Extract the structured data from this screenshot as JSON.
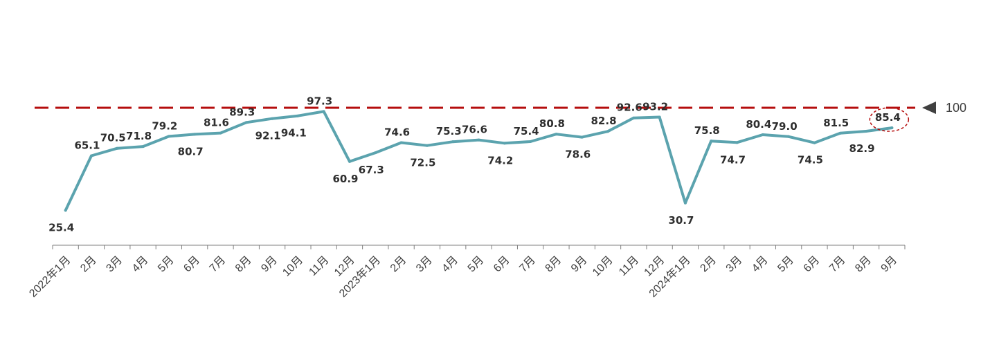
{
  "chart_data": {
    "type": "line",
    "categories": [
      "2022年1月",
      "2月",
      "3月",
      "4月",
      "5月",
      "6月",
      "7月",
      "8月",
      "9月",
      "10月",
      "11月",
      "12月",
      "2023年1月",
      "2月",
      "3月",
      "4月",
      "5月",
      "6月",
      "7月",
      "8月",
      "9月",
      "10月",
      "11月",
      "12月",
      "2024年1月",
      "2月",
      "3月",
      "4月",
      "5月",
      "6月",
      "7月",
      "8月",
      "9月"
    ],
    "values": [
      25.4,
      65.1,
      70.5,
      71.8,
      79.2,
      80.7,
      81.6,
      89.3,
      92.1,
      94.1,
      97.3,
      60.9,
      67.3,
      74.6,
      72.5,
      75.3,
      76.6,
      74.2,
      75.4,
      80.8,
      78.6,
      82.8,
      92.6,
      93.2,
      30.7,
      75.8,
      74.7,
      80.4,
      79.0,
      74.5,
      81.5,
      82.9,
      85.4
    ],
    "labels": [
      "25.4",
      "65.1",
      "70.5",
      "71.8",
      "79.2",
      "80.7",
      "81.6",
      "89.3",
      "92.1",
      "94.1",
      "97.3",
      "60.9",
      "67.3",
      "74.6",
      "72.5",
      "75.3",
      "76.6",
      "74.2",
      "75.4",
      "80.8",
      "78.6",
      "82.8",
      "92.6",
      "93.2",
      "30.7",
      "75.8",
      "74.7",
      "80.4",
      "79.0",
      "74.5",
      "81.5",
      "82.9",
      "85.4"
    ],
    "label_side": [
      "below",
      "above",
      "above",
      "above",
      "above",
      "below",
      "above",
      "above",
      "below",
      "below",
      "above",
      "below",
      "below",
      "above",
      "below",
      "above",
      "above",
      "below",
      "above",
      "above",
      "below",
      "above",
      "above",
      "above",
      "below",
      "above",
      "below",
      "above",
      "above",
      "below",
      "above",
      "below",
      "above"
    ],
    "reference_line": {
      "value": 100,
      "label": "100"
    },
    "highlighted_point": "9月",
    "title": "",
    "xlabel": "",
    "ylabel": "",
    "ylim": [
      0,
      100
    ],
    "grid": false,
    "colors": {
      "line": "#5ba3ae",
      "reference": "#b50d0d",
      "highlight": "#b50d0d",
      "marker": "#404040"
    }
  }
}
